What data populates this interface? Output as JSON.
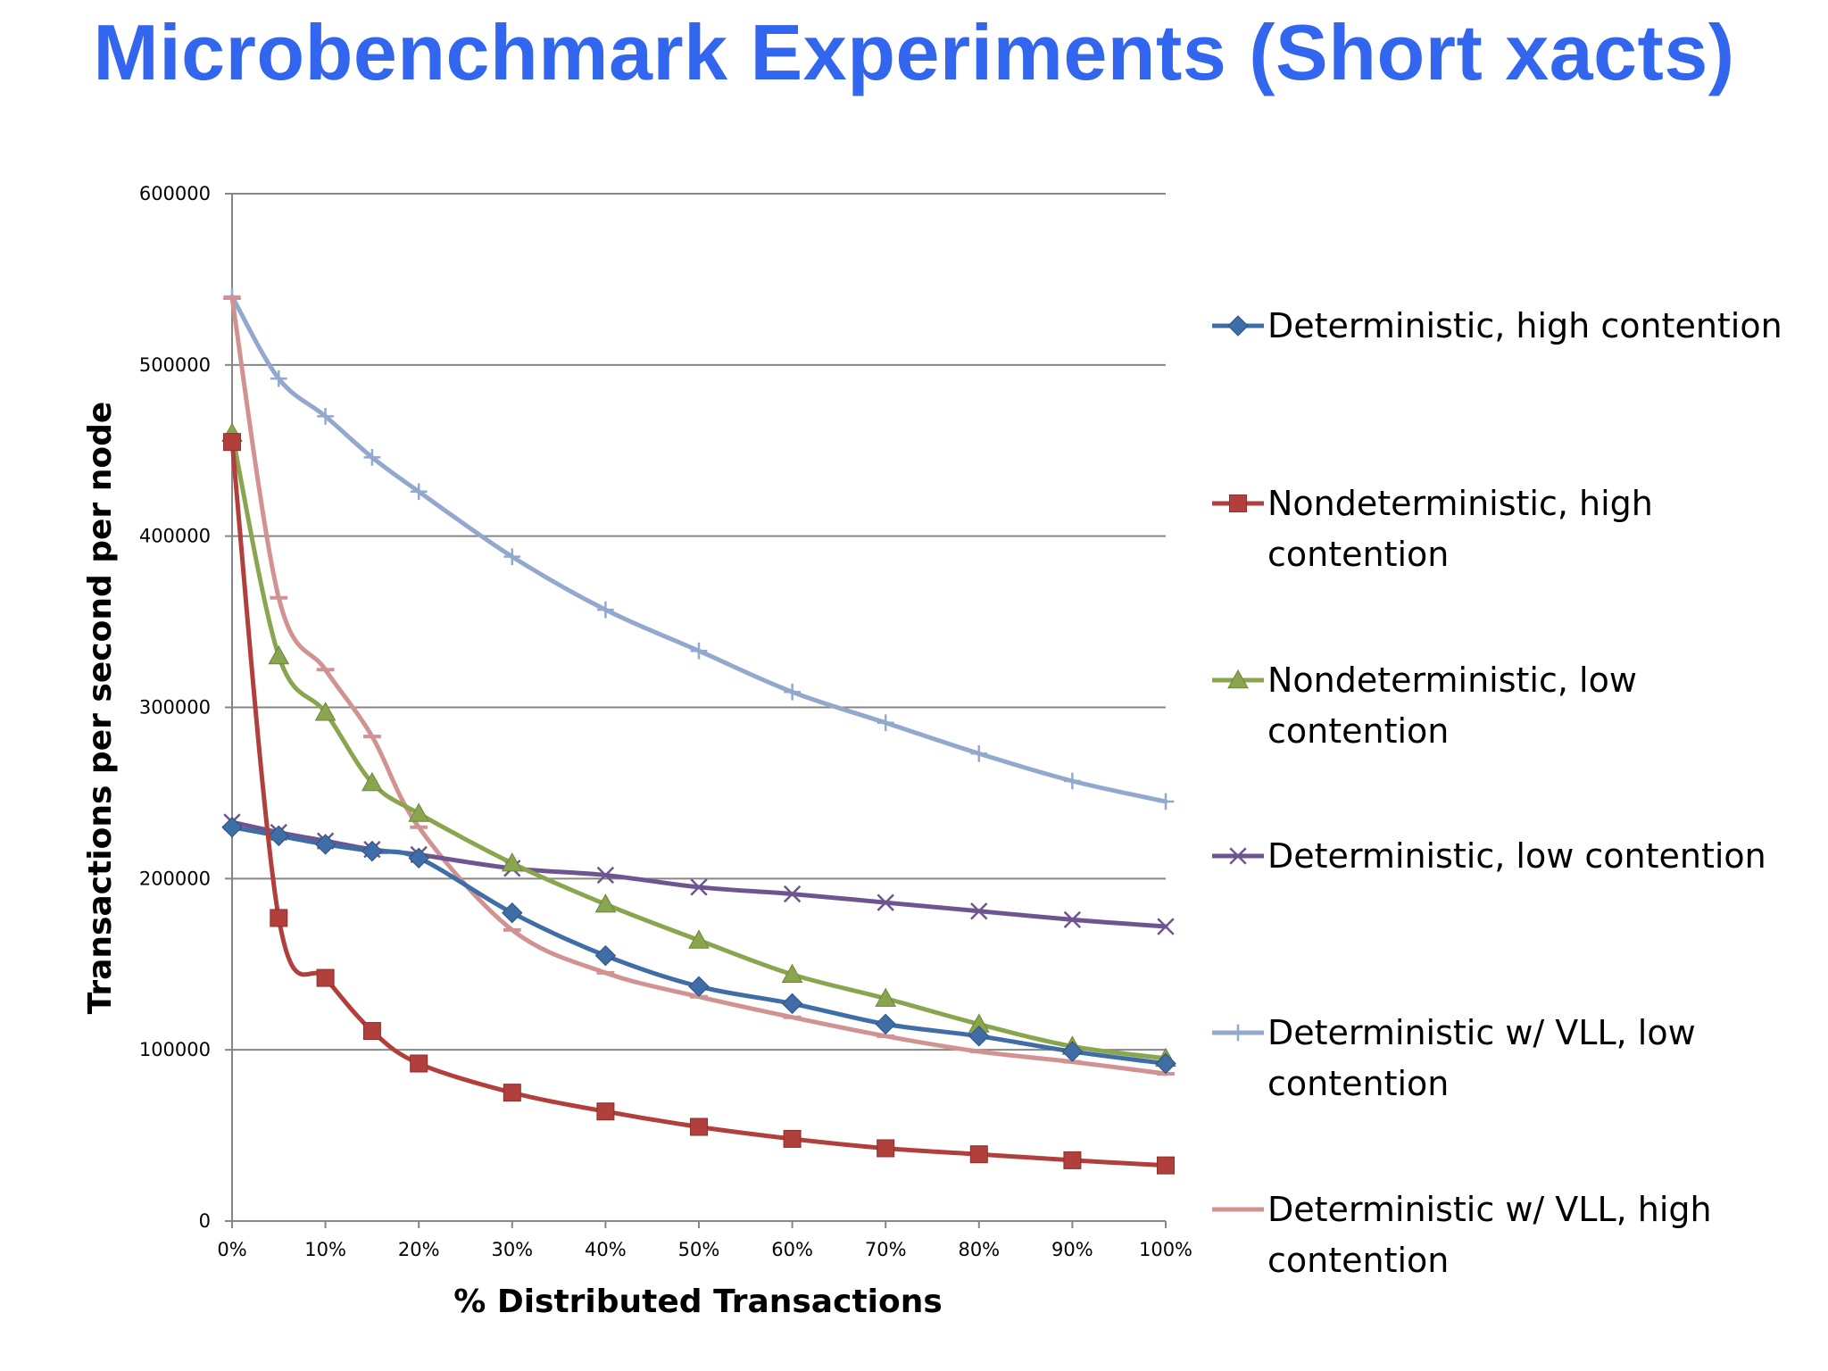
{
  "slide": {
    "title": "Microbenchmark Experiments (Short xacts)"
  },
  "chart_data": {
    "type": "line",
    "title": "",
    "xlabel": "% Distributed Transactions",
    "ylabel": "Transactions per second per node",
    "x_values": [
      0,
      5,
      10,
      15,
      20,
      30,
      40,
      50,
      60,
      70,
      80,
      90,
      100
    ],
    "x_tick_values": [
      0,
      10,
      20,
      30,
      40,
      50,
      60,
      70,
      80,
      90,
      100
    ],
    "x_tick_labels": [
      "0%",
      "10%",
      "20%",
      "30%",
      "40%",
      "50%",
      "60%",
      "70%",
      "80%",
      "90%",
      "100%"
    ],
    "xlim": [
      0,
      100
    ],
    "y_tick_values": [
      0,
      100000,
      200000,
      300000,
      400000,
      500000,
      600000
    ],
    "y_tick_labels": [
      "0",
      "100000",
      "200000",
      "300000",
      "400000",
      "500000",
      "600000"
    ],
    "ylim": [
      0,
      600000
    ],
    "grid": "horizontal",
    "legend_position": "right",
    "series": [
      {
        "name": "Deterministic, high contention",
        "legend_lines": [
          "Deterministic, high contention"
        ],
        "color": "#3f6ea6",
        "marker": "diamond",
        "values": [
          230000,
          225000,
          220000,
          216000,
          212000,
          180000,
          155000,
          137000,
          127000,
          115000,
          108000,
          99000,
          92000
        ]
      },
      {
        "name": "Nondeterministic, high contention",
        "legend_lines": [
          "Nondeterministic, high",
          "contention"
        ],
        "color": "#b13f3c",
        "marker": "square",
        "values": [
          455000,
          177000,
          142000,
          111000,
          92000,
          75000,
          64000,
          55000,
          48000,
          42500,
          39000,
          35500,
          32500
        ]
      },
      {
        "name": "Nondeterministic, low contention",
        "legend_lines": [
          "Nondeterministic, low",
          "contention"
        ],
        "color": "#89a54e",
        "marker": "triangle",
        "values": [
          460000,
          330000,
          297000,
          256000,
          238000,
          209000,
          185000,
          164000,
          144000,
          130000,
          115000,
          102000,
          95000
        ]
      },
      {
        "name": "Deterministic, low contention",
        "legend_lines": [
          "Deterministic, low contention"
        ],
        "color": "#6f5590",
        "marker": "x",
        "values": [
          233000,
          227000,
          222000,
          217000,
          214000,
          206000,
          202000,
          195000,
          191000,
          186000,
          181000,
          176000,
          172000
        ]
      },
      {
        "name": "Deterministic w/ VLL, low contention",
        "legend_lines": [
          "Deterministic w/ VLL, low",
          "contention"
        ],
        "color": "#92a8ce",
        "marker": "plus",
        "values": [
          540000,
          492000,
          470000,
          446000,
          426000,
          388000,
          357000,
          333000,
          309000,
          291000,
          273000,
          257000,
          245000
        ]
      },
      {
        "name": "Deterministic w/ VLL, high contention",
        "legend_lines": [
          "Deterministic w/ VLL, high",
          "contention"
        ],
        "color": "#d19392",
        "marker": "dash",
        "values": [
          539000,
          364000,
          322000,
          283000,
          230000,
          170000,
          145000,
          131000,
          119000,
          108000,
          99000,
          93000,
          86000
        ]
      }
    ]
  }
}
